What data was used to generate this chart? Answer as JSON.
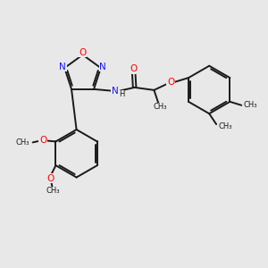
{
  "bg_color": "#e8e8e8",
  "bond_color": "#1a1a1a",
  "n_color": "#1414ff",
  "o_color": "#ff0000",
  "lw": 1.4,
  "fs": 7.0,
  "fss": 5.5,
  "figsize": [
    3.0,
    3.0
  ],
  "dpi": 100,
  "xlim": [
    0.0,
    3.0
  ],
  "ylim": [
    0.0,
    3.0
  ]
}
